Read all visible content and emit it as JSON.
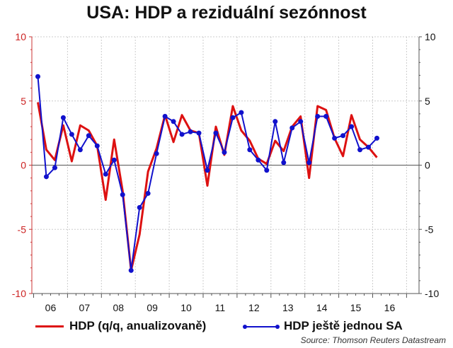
{
  "chart_data": {
    "type": "line",
    "title": "USA: HDP a reziduální sezónnost",
    "source": "Source: Thomson Reuters Datastream",
    "x_start": "2006Q1",
    "x_frequency": "quarterly",
    "x_tick_labels": [
      "06",
      "07",
      "08",
      "09",
      "10",
      "11",
      "12",
      "13",
      "14",
      "15",
      "16"
    ],
    "xlim": [
      2006,
      2017
    ],
    "ylim": [
      -10,
      10
    ],
    "y_ticks": [
      -10,
      -5,
      0,
      5,
      10
    ],
    "y_tick_labels": [
      "-10",
      "-5",
      "0",
      "5",
      "10"
    ],
    "grid": true,
    "legend_position": "bottom",
    "series": [
      {
        "name": "HDP (q/q, anualizovaně)",
        "color": "#dd1111",
        "marker": false,
        "values": [
          4.9,
          1.2,
          0.4,
          3.1,
          0.3,
          3.1,
          2.7,
          1.5,
          -2.7,
          2.0,
          -2.0,
          -8.2,
          -5.4,
          -0.5,
          1.3,
          3.9,
          1.8,
          3.9,
          2.7,
          2.5,
          -1.6,
          3.0,
          0.8,
          4.6,
          2.7,
          1.9,
          0.5,
          0.1,
          1.9,
          1.1,
          3.0,
          3.8,
          -1.0,
          4.6,
          4.3,
          2.1,
          0.7,
          3.9,
          2.0,
          1.4,
          0.6
        ]
      },
      {
        "name": "HDP ještě jednou SA",
        "color": "#1111cc",
        "marker": true,
        "values": [
          6.9,
          -0.9,
          -0.2,
          3.7,
          2.4,
          1.2,
          2.3,
          1.5,
          -0.7,
          0.4,
          -2.3,
          -8.2,
          -3.3,
          -2.2,
          0.9,
          3.8,
          3.4,
          2.4,
          2.6,
          2.5,
          -0.4,
          2.5,
          1.0,
          3.7,
          4.1,
          1.2,
          0.4,
          -0.4,
          3.4,
          0.2,
          2.9,
          3.4,
          0.2,
          3.8,
          3.8,
          2.1,
          2.3,
          3.0,
          1.2,
          1.4,
          2.1
        ]
      }
    ]
  }
}
